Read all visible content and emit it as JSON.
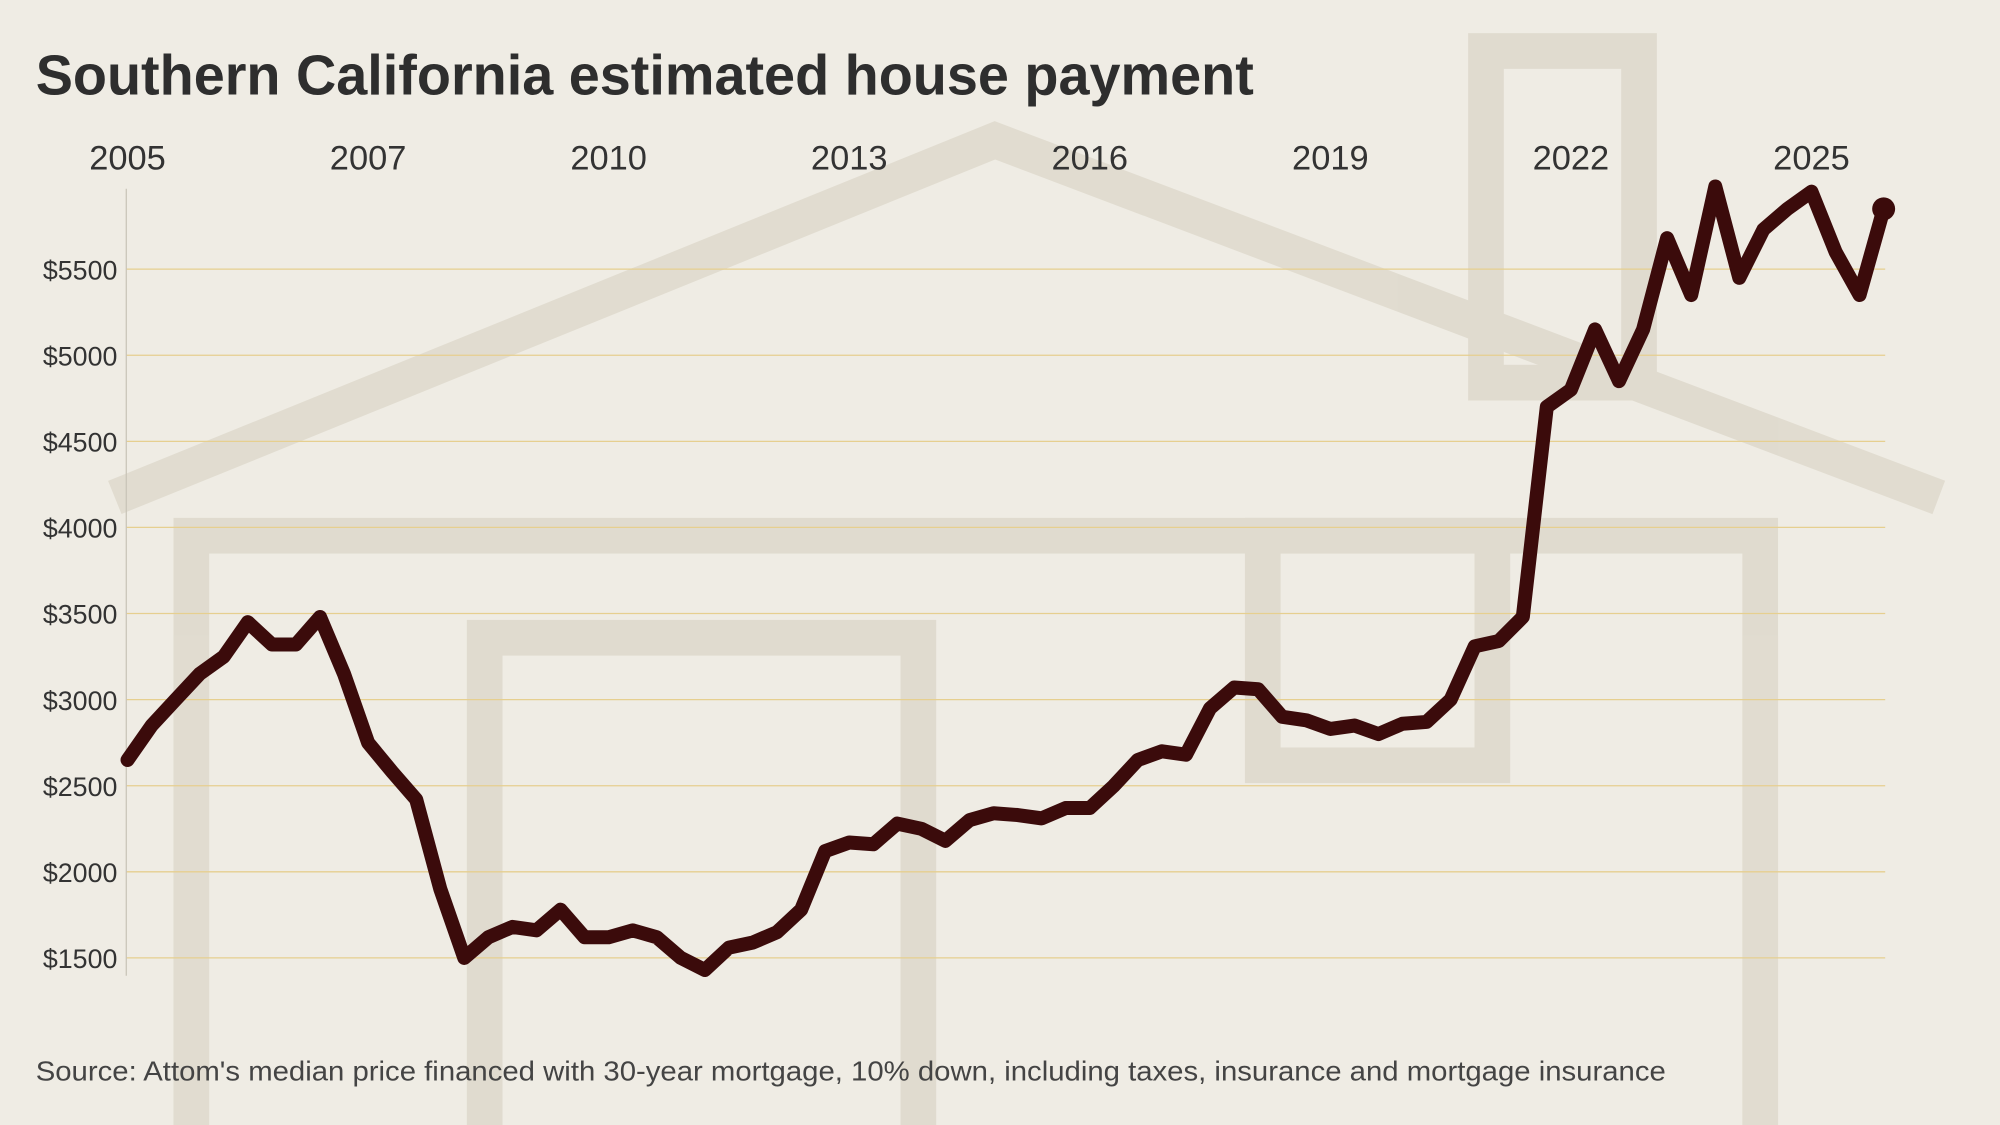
{
  "chart_data": {
    "type": "line",
    "title": "Southern California estimated house payment",
    "caption": "Source: Attom's median price financed with 30-year mortgage, 10% down, including taxes, insurance and mortgage insurance",
    "categories": [
      "2005",
      null,
      null,
      null,
      null,
      null,
      null,
      null,
      null,
      null,
      "2007",
      null,
      null,
      null,
      null,
      null,
      null,
      null,
      null,
      null,
      "2010",
      null,
      null,
      null,
      null,
      null,
      null,
      null,
      null,
      null,
      "2013",
      null,
      null,
      null,
      null,
      null,
      null,
      null,
      null,
      null,
      "2016",
      null,
      null,
      null,
      null,
      null,
      null,
      null,
      null,
      null,
      "2019",
      null,
      null,
      null,
      null,
      null,
      null,
      null,
      null,
      null,
      "2022",
      null,
      null,
      null,
      null,
      null,
      null,
      null,
      null,
      null,
      "2025",
      null,
      null,
      null
    ],
    "values": [
      2650,
      2850,
      3000,
      3150,
      3250,
      3450,
      3320,
      3320,
      3480,
      3150,
      2750,
      2580,
      2420,
      1900,
      1500,
      1620,
      1680,
      1660,
      1780,
      1620,
      1620,
      1660,
      1620,
      1500,
      1430,
      1560,
      1590,
      1650,
      1780,
      2120,
      2170,
      2160,
      2280,
      2250,
      2180,
      2300,
      2340,
      2330,
      2310,
      2370,
      2370,
      2500,
      2650,
      2700,
      2680,
      2950,
      3070,
      3060,
      2900,
      2880,
      2830,
      2850,
      2800,
      2860,
      2870,
      3000,
      3310,
      3340,
      3480,
      4700,
      4800,
      5150,
      4850,
      5150,
      5680,
      5350,
      5980,
      5450,
      5730,
      5850,
      5950,
      5600,
      5350,
      5850
    ],
    "color": "#3b0b0b",
    "ylim": [
      1400,
      6000
    ],
    "yticks": [
      {
        "value": 1500,
        "label": "$1500"
      },
      {
        "value": 2000,
        "label": "$2000"
      },
      {
        "value": 2500,
        "label": "$2500"
      },
      {
        "value": 3000,
        "label": "$3000"
      },
      {
        "value": 3500,
        "label": "$3500"
      },
      {
        "value": 4000,
        "label": "$4000"
      },
      {
        "value": 4500,
        "label": "$4500"
      },
      {
        "value": 5000,
        "label": "$5000"
      },
      {
        "value": 5500,
        "label": "$5500"
      }
    ],
    "grid": true
  }
}
